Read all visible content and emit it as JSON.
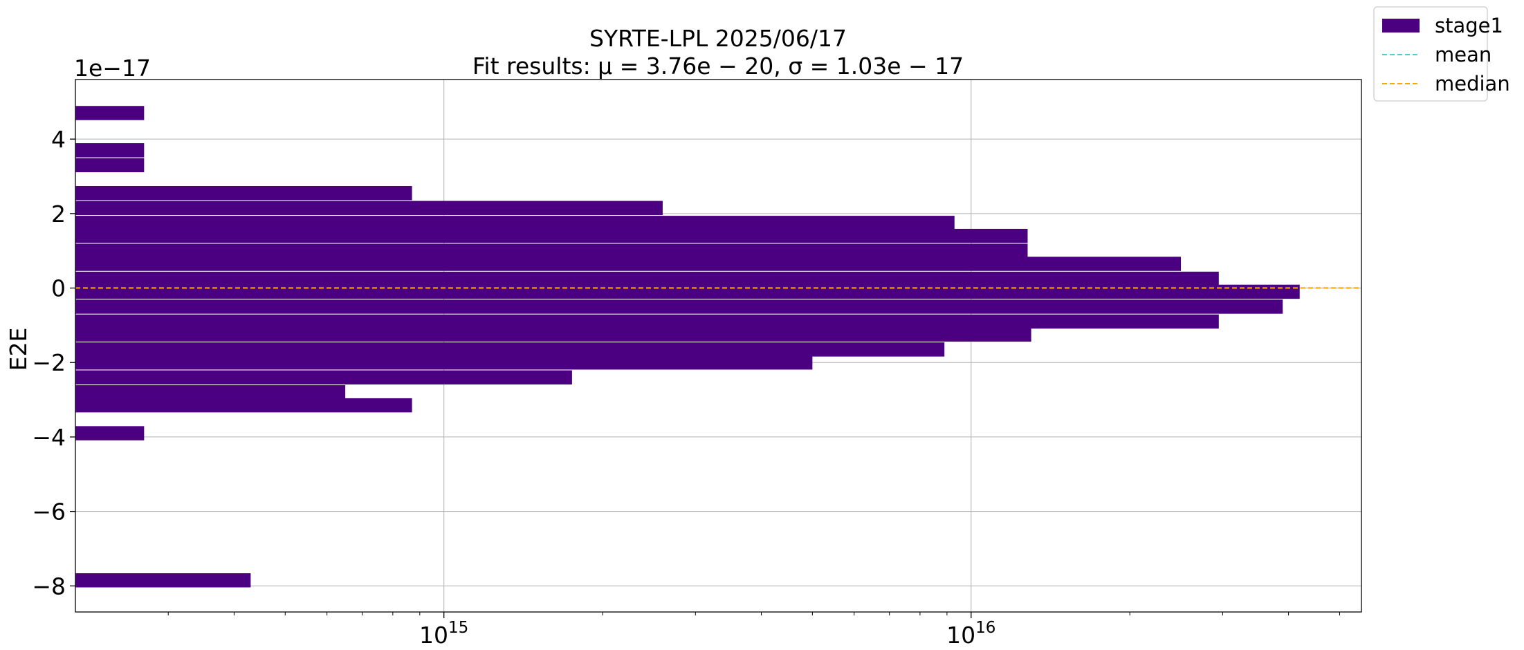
{
  "chart_data": {
    "type": "bar",
    "orientation": "horizontal",
    "title": "SYRTE-LPL 2025/06/17",
    "subtitle": "Fit results: μ = 3.76e − 20,  σ = 1.03e − 17",
    "xlabel": "",
    "ylabel": "E2E",
    "y_offset_label": "1e−17",
    "x_scale": "log",
    "xlim": [
      200000000000000.0,
      5.5e+16
    ],
    "ylim": [
      -8.7,
      5.6
    ],
    "grid": true,
    "legend_position": "outside-top-right",
    "x_ticks": [
      {
        "value": 1000000000000000.0,
        "base": "10",
        "exp": "15"
      },
      {
        "value": 1e+16,
        "base": "10",
        "exp": "16"
      }
    ],
    "y_ticks": [
      {
        "value": 4,
        "label": "4"
      },
      {
        "value": 2,
        "label": "2"
      },
      {
        "value": 0,
        "label": "0"
      },
      {
        "value": -2,
        "label": "−2"
      },
      {
        "value": -4,
        "label": "−4"
      },
      {
        "value": -6,
        "label": "−6"
      },
      {
        "value": -8,
        "label": "−8"
      }
    ],
    "bin_height": 0.38,
    "series": [
      {
        "name": "stage1",
        "color": "#4b0082",
        "bars": [
          {
            "y": 4.7,
            "x": 270000000000000.0
          },
          {
            "y": 3.7,
            "x": 270000000000000.0
          },
          {
            "y": 3.3,
            "x": 270000000000000.0
          },
          {
            "y": 2.55,
            "x": 870000000000000.0
          },
          {
            "y": 2.15,
            "x": 2600000000000000.0
          },
          {
            "y": 1.75,
            "x": 9300000000000000.0
          },
          {
            "y": 1.4,
            "x": 1.28e+16
          },
          {
            "y": 1.0,
            "x": 1.28e+16
          },
          {
            "y": 0.65,
            "x": 2.5e+16
          },
          {
            "y": 0.25,
            "x": 2.95e+16
          },
          {
            "y": -0.1,
            "x": 4.2e+16
          },
          {
            "y": -0.5,
            "x": 3.9e+16
          },
          {
            "y": -0.9,
            "x": 2.95e+16
          },
          {
            "y": -1.25,
            "x": 1.3e+16
          },
          {
            "y": -1.65,
            "x": 8900000000000000.0
          },
          {
            "y": -2.0,
            "x": 5000000000000000.0
          },
          {
            "y": -2.4,
            "x": 1750000000000000.0
          },
          {
            "y": -2.8,
            "x": 650000000000000.0
          },
          {
            "y": -3.15,
            "x": 870000000000000.0
          },
          {
            "y": -3.9,
            "x": 270000000000000.0
          },
          {
            "y": -7.85,
            "x": 430000000000000.0
          }
        ]
      },
      {
        "name": "mean",
        "color": "#48d1cc",
        "line_y": 0.0038
      },
      {
        "name": "median",
        "color": "#ffa500",
        "line_y": 0.0
      }
    ]
  }
}
